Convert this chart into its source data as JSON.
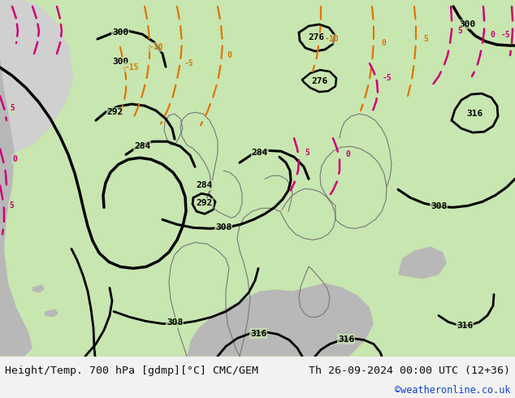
{
  "title_left": "Height/Temp. 700 hPa [gdmp][°C] CMC/GEM",
  "title_right": "Th 26-09-2024 00:00 UTC (12+36)",
  "watermark": "©weatheronline.co.uk",
  "bg_color": "#f2f2f2",
  "map_green": "#c8e6b0",
  "map_gray": "#b8b8b8",
  "map_light_gray": "#d0d0d0",
  "footer_text_color": "#111111",
  "watermark_color": "#1144cc",
  "font_family": "monospace",
  "title_fontsize": 9.5,
  "watermark_fontsize": 8.5,
  "fig_width": 6.34,
  "fig_height": 4.9,
  "black_lw": 2.2,
  "orange_color": "#dd7700",
  "pink_color": "#cc0077"
}
